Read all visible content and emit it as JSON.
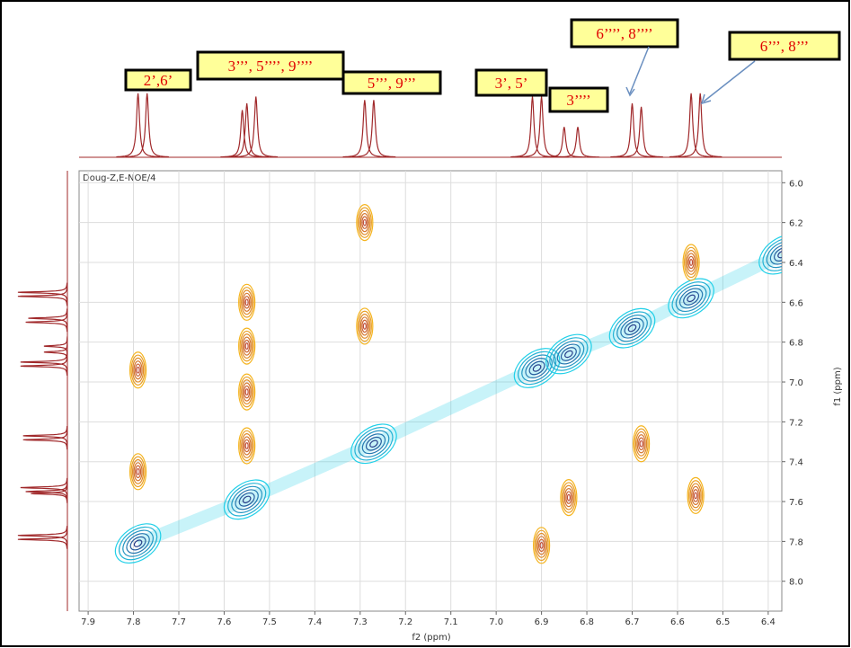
{
  "chart_data": {
    "type": "nmr2d",
    "dataset_label": "Doug-Z,E-NOE/4",
    "x_label": "f2 (ppm)",
    "y_label": "f1 (ppm)",
    "xlim": [
      7.92,
      6.37
    ],
    "ylim": [
      5.94,
      8.15
    ],
    "xticks": [
      7.9,
      7.8,
      7.7,
      7.6,
      7.5,
      7.4,
      7.3,
      7.2,
      7.1,
      {
        "value": 7,
        "label": "7.0"
      },
      6.9,
      6.8,
      6.7,
      6.6,
      6.5,
      6.4
    ],
    "yticks": [
      {
        "value": 6,
        "label": "6.0"
      },
      6.2,
      6.4,
      6.6,
      6.8,
      {
        "value": 7,
        "label": "7.0"
      },
      7.2,
      7.4,
      7.6,
      7.8,
      {
        "value": 8,
        "label": "8.0"
      }
    ],
    "grid": true,
    "spectrum_color": "#a0282a",
    "peaks": {
      "ppm": [
        7.79,
        7.77,
        7.56,
        7.55,
        7.53,
        7.29,
        7.27,
        6.92,
        6.9,
        6.85,
        6.82,
        6.7,
        6.68,
        6.57,
        6.55
      ],
      "height": [
        95,
        95,
        70,
        80,
        90,
        85,
        85,
        90,
        90,
        45,
        45,
        80,
        75,
        95,
        95
      ]
    },
    "diagonal": {
      "color": "#22d0e8",
      "core_color": "#2a3f8a",
      "f2": [
        7.79,
        7.55,
        7.27,
        6.91,
        6.84,
        6.7,
        6.57,
        6.37
      ],
      "f1": [
        7.81,
        7.59,
        7.31,
        6.93,
        6.86,
        6.73,
        6.58,
        6.36
      ]
    },
    "cross": {
      "color": "#f5b41e",
      "core_color": "#c0503a",
      "f2": [
        7.79,
        7.79,
        7.55,
        7.55,
        7.55,
        7.55,
        7.29,
        7.29,
        6.9,
        6.84,
        6.68,
        6.56,
        6.57
      ],
      "f1": [
        6.94,
        7.45,
        6.6,
        6.82,
        7.32,
        7.05,
        6.2,
        6.72,
        7.82,
        7.58,
        7.31,
        7.57,
        6.4
      ]
    },
    "annotations": [
      "2’,6’",
      "3’’’, 5’’’’, 9’’’’",
      "5’’’, 9’’’",
      "3’, 5’",
      "3’’’’",
      "6’’’’, 8’’’’",
      "6’’’, 8’’’"
    ]
  }
}
